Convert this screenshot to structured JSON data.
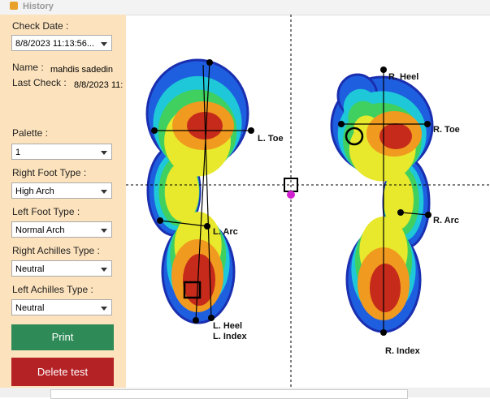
{
  "window": {
    "title": "History"
  },
  "panel": {
    "check_date_label": "Check Date :",
    "check_date": "8/8/2023 11:13:56...",
    "name_label": "Name :",
    "name": "mahdis sadedin",
    "last_check_label": "Last Check :",
    "last_check": "8/8/2023 11:",
    "palette_label": "Palette :",
    "palette": "1",
    "right_foot_type_label": "Right Foot Type :",
    "right_foot_type": "High Arch",
    "left_foot_type_label": "Left Foot Type :",
    "left_foot_type": "Normal Arch",
    "right_achilles_type_label": "Right Achilles Type :",
    "right_achilles_type": "Neutral",
    "left_achilles_type_label": "Left Achilles Type :",
    "left_achilles_type": "Neutral",
    "print_button": "Print",
    "delete_button": "Delete test"
  },
  "footprint": {
    "left": {
      "toe": "L. Toe",
      "arc": "L. Arc",
      "heel": "L. Heel",
      "index": "L. Index"
    },
    "right": {
      "heel": "R. Heel",
      "toe": "R. Toe",
      "arc": "R. Arc",
      "index": "R. Index"
    }
  }
}
